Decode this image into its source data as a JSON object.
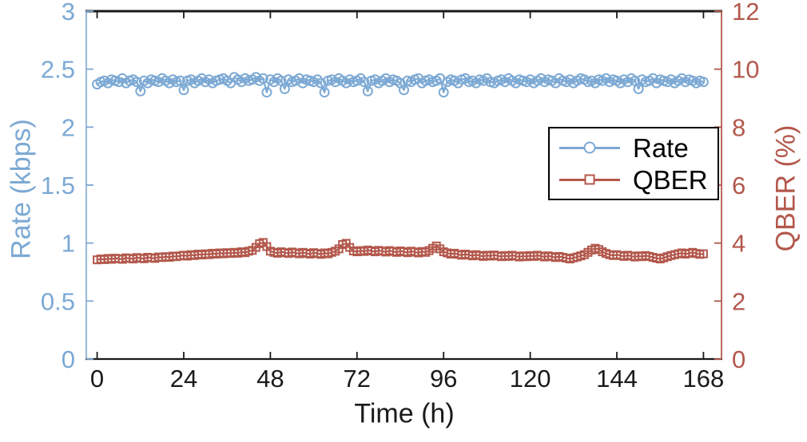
{
  "figure": {
    "background": "#ffffff"
  },
  "colors": {
    "rate_blue": "#7CA9D4",
    "qber_red": "#B3584C",
    "axis_dark": "#1a1a1a"
  },
  "legend": {
    "items": [
      {
        "label": "Rate",
        "marker": "circle",
        "color": "#7CA9D4"
      },
      {
        "label": "QBER",
        "marker": "square",
        "color": "#B3584C"
      }
    ]
  },
  "chart_data": {
    "type": "line",
    "title": "",
    "xlabel": "Time (h)",
    "grid": false,
    "legend_position": "inside upper right",
    "xlim": [
      -3,
      173
    ],
    "x_ticks": [
      0,
      24,
      48,
      72,
      96,
      120,
      144,
      168
    ],
    "left_axis": {
      "label": "Rate (kbps)",
      "color": "#7CA9D4",
      "lim": [
        0,
        3
      ],
      "ticks": [
        0,
        0.5,
        1,
        1.5,
        2,
        2.5,
        3
      ],
      "tick_labels": [
        "0",
        "0.5",
        "1",
        "1.5",
        "2",
        "2.5",
        "3"
      ]
    },
    "right_axis": {
      "label": "QBER (%)",
      "color": "#B3584C",
      "lim": [
        0,
        12
      ],
      "ticks": [
        0,
        2,
        4,
        6,
        8,
        10,
        12
      ],
      "tick_labels": [
        "0",
        "2",
        "4",
        "6",
        "8",
        "10",
        "12"
      ]
    },
    "series": [
      {
        "name": "Rate",
        "axis": "left",
        "marker": "circle",
        "color": "#7CA9D4",
        "x": {
          "start": 0,
          "step": 1
        },
        "values": [
          2.37,
          2.39,
          2.4,
          2.38,
          2.41,
          2.4,
          2.39,
          2.42,
          2.38,
          2.4,
          2.41,
          2.39,
          2.31,
          2.4,
          2.38,
          2.41,
          2.4,
          2.39,
          2.42,
          2.4,
          2.38,
          2.41,
          2.39,
          2.4,
          2.32,
          2.4,
          2.41,
          2.38,
          2.4,
          2.42,
          2.39,
          2.41,
          2.38,
          2.4,
          2.41,
          2.42,
          2.4,
          2.38,
          2.43,
          2.41,
          2.39,
          2.42,
          2.4,
          2.41,
          2.43,
          2.4,
          2.42,
          2.3,
          2.41,
          2.39,
          2.42,
          2.4,
          2.33,
          2.41,
          2.39,
          2.4,
          2.42,
          2.38,
          2.41,
          2.4,
          2.39,
          2.41,
          2.38,
          2.3,
          2.4,
          2.41,
          2.39,
          2.42,
          2.4,
          2.38,
          2.41,
          2.39,
          2.4,
          2.42,
          2.39,
          2.31,
          2.4,
          2.41,
          2.38,
          2.4,
          2.42,
          2.39,
          2.41,
          2.4,
          2.38,
          2.32,
          2.4,
          2.39,
          2.41,
          2.42,
          2.38,
          2.4,
          2.41,
          2.39,
          2.4,
          2.42,
          2.3,
          2.39,
          2.41,
          2.4,
          2.38,
          2.41,
          2.42,
          2.39,
          2.4,
          2.38,
          2.41,
          2.4,
          2.42,
          2.39,
          2.38,
          2.4,
          2.41,
          2.39,
          2.42,
          2.4,
          2.38,
          2.41,
          2.4,
          2.39,
          2.41,
          2.38,
          2.4,
          2.42,
          2.39,
          2.41,
          2.4,
          2.38,
          2.42,
          2.4,
          2.39,
          2.41,
          2.38,
          2.4,
          2.42,
          2.41,
          2.39,
          2.4,
          2.38,
          2.41,
          2.4,
          2.42,
          2.39,
          2.41,
          2.4,
          2.38,
          2.41,
          2.39,
          2.42,
          2.4,
          2.33,
          2.41,
          2.39,
          2.4,
          2.42,
          2.38,
          2.41,
          2.4,
          2.39,
          2.41,
          2.38,
          2.4,
          2.42,
          2.39,
          2.41,
          2.4,
          2.38,
          2.4,
          2.39
        ]
      },
      {
        "name": "QBER",
        "axis": "right",
        "marker": "square",
        "color": "#B3584C",
        "x": {
          "start": 0,
          "step": 1
        },
        "values": [
          3.42,
          3.45,
          3.43,
          3.47,
          3.44,
          3.48,
          3.46,
          3.44,
          3.49,
          3.47,
          3.45,
          3.5,
          3.48,
          3.46,
          3.51,
          3.49,
          3.47,
          3.52,
          3.5,
          3.53,
          3.51,
          3.55,
          3.53,
          3.56,
          3.58,
          3.55,
          3.6,
          3.57,
          3.62,
          3.59,
          3.63,
          3.6,
          3.65,
          3.62,
          3.66,
          3.63,
          3.67,
          3.64,
          3.68,
          3.65,
          3.7,
          3.67,
          3.72,
          3.75,
          3.85,
          3.98,
          4.02,
          3.88,
          3.72,
          3.68,
          3.65,
          3.7,
          3.67,
          3.64,
          3.69,
          3.66,
          3.63,
          3.68,
          3.65,
          3.62,
          3.67,
          3.64,
          3.61,
          3.66,
          3.63,
          3.68,
          3.72,
          3.8,
          3.95,
          3.99,
          3.85,
          3.73,
          3.7,
          3.74,
          3.71,
          3.76,
          3.73,
          3.7,
          3.75,
          3.72,
          3.69,
          3.74,
          3.71,
          3.68,
          3.73,
          3.7,
          3.67,
          3.72,
          3.69,
          3.66,
          3.71,
          3.68,
          3.74,
          3.82,
          3.9,
          3.8,
          3.7,
          3.66,
          3.62,
          3.65,
          3.61,
          3.58,
          3.62,
          3.59,
          3.56,
          3.6,
          3.57,
          3.54,
          3.58,
          3.55,
          3.59,
          3.56,
          3.53,
          3.57,
          3.54,
          3.58,
          3.55,
          3.52,
          3.56,
          3.53,
          3.57,
          3.54,
          3.58,
          3.55,
          3.52,
          3.56,
          3.53,
          3.5,
          3.54,
          3.51,
          3.48,
          3.45,
          3.49,
          3.52,
          3.56,
          3.6,
          3.68,
          3.76,
          3.82,
          3.78,
          3.7,
          3.64,
          3.6,
          3.57,
          3.6,
          3.57,
          3.54,
          3.58,
          3.55,
          3.52,
          3.56,
          3.53,
          3.57,
          3.54,
          3.51,
          3.48,
          3.45,
          3.49,
          3.53,
          3.57,
          3.6,
          3.63,
          3.66,
          3.62,
          3.65,
          3.68,
          3.64,
          3.61,
          3.63
        ]
      }
    ]
  }
}
